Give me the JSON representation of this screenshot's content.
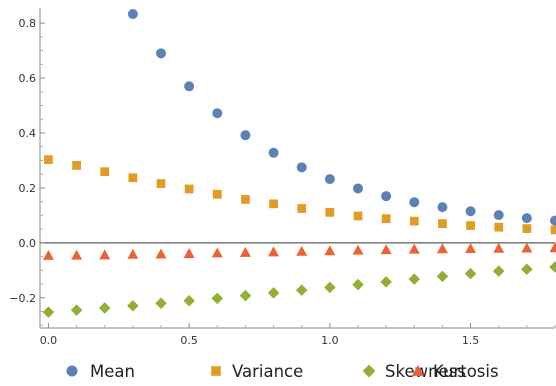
{
  "chart_data": {
    "type": "scatter",
    "title": "",
    "xlabel": "",
    "ylabel": "",
    "xlim": [
      -0.03,
      1.8
    ],
    "ylim": [
      -0.31,
      0.855
    ],
    "x_ticks": [
      0.0,
      0.5,
      1.0,
      1.5
    ],
    "x_tick_labels": [
      "0.0",
      "0.5",
      "1.0",
      "1.5"
    ],
    "y_ticks": [
      -0.2,
      0.0,
      0.2,
      0.4,
      0.6,
      0.8
    ],
    "y_tick_labels": [
      "−0.2",
      "0.0",
      "0.2",
      "0.4",
      "0.6",
      "0.8"
    ],
    "grid": false,
    "legend_position": "bottom",
    "series": [
      {
        "name": "Mean",
        "marker": "circle",
        "color": "#5e81b5",
        "x": [
          0.3,
          0.4,
          0.5,
          0.6,
          0.7,
          0.8,
          0.9,
          1.0,
          1.1,
          1.2,
          1.3,
          1.4,
          1.5,
          1.6,
          1.7,
          1.8
        ],
        "y": [
          0.833,
          0.69,
          0.57,
          0.472,
          0.392,
          0.328,
          0.275,
          0.232,
          0.198,
          0.17,
          0.148,
          0.13,
          0.115,
          0.101,
          0.09,
          0.081
        ]
      },
      {
        "name": "Variance",
        "marker": "square",
        "color": "#e19c24",
        "x": [
          0.0,
          0.1,
          0.2,
          0.3,
          0.4,
          0.5,
          0.6,
          0.7,
          0.8,
          0.9,
          1.0,
          1.1,
          1.2,
          1.3,
          1.4,
          1.5,
          1.6,
          1.7,
          1.8
        ],
        "y": [
          0.303,
          0.282,
          0.259,
          0.237,
          0.216,
          0.196,
          0.177,
          0.158,
          0.142,
          0.125,
          0.111,
          0.098,
          0.088,
          0.079,
          0.07,
          0.063,
          0.057,
          0.052,
          0.047
        ]
      },
      {
        "name": "Skewness",
        "marker": "diamond",
        "color": "#8fb032",
        "x": [
          0.0,
          0.1,
          0.2,
          0.3,
          0.4,
          0.5,
          0.6,
          0.7,
          0.8,
          0.9,
          1.0,
          1.1,
          1.2,
          1.3,
          1.4,
          1.5,
          1.6,
          1.7,
          1.8
        ],
        "y": [
          -0.252,
          -0.245,
          -0.237,
          -0.229,
          -0.22,
          -0.211,
          -0.202,
          -0.192,
          -0.182,
          -0.172,
          -0.162,
          -0.152,
          -0.142,
          -0.132,
          -0.122,
          -0.112,
          -0.103,
          -0.096,
          -0.088
        ]
      },
      {
        "name": "Kurtosis",
        "marker": "triangle",
        "color": "#eb6235",
        "x": [
          0.0,
          0.1,
          0.2,
          0.3,
          0.4,
          0.5,
          0.6,
          0.7,
          0.8,
          0.9,
          1.0,
          1.1,
          1.2,
          1.3,
          1.4,
          1.5,
          1.6,
          1.7,
          1.8
        ],
        "y": [
          -0.046,
          -0.045,
          -0.044,
          -0.042,
          -0.041,
          -0.039,
          -0.037,
          -0.035,
          -0.033,
          -0.031,
          -0.029,
          -0.027,
          -0.025,
          -0.023,
          -0.022,
          -0.021,
          -0.02,
          -0.019,
          -0.018
        ]
      }
    ]
  }
}
